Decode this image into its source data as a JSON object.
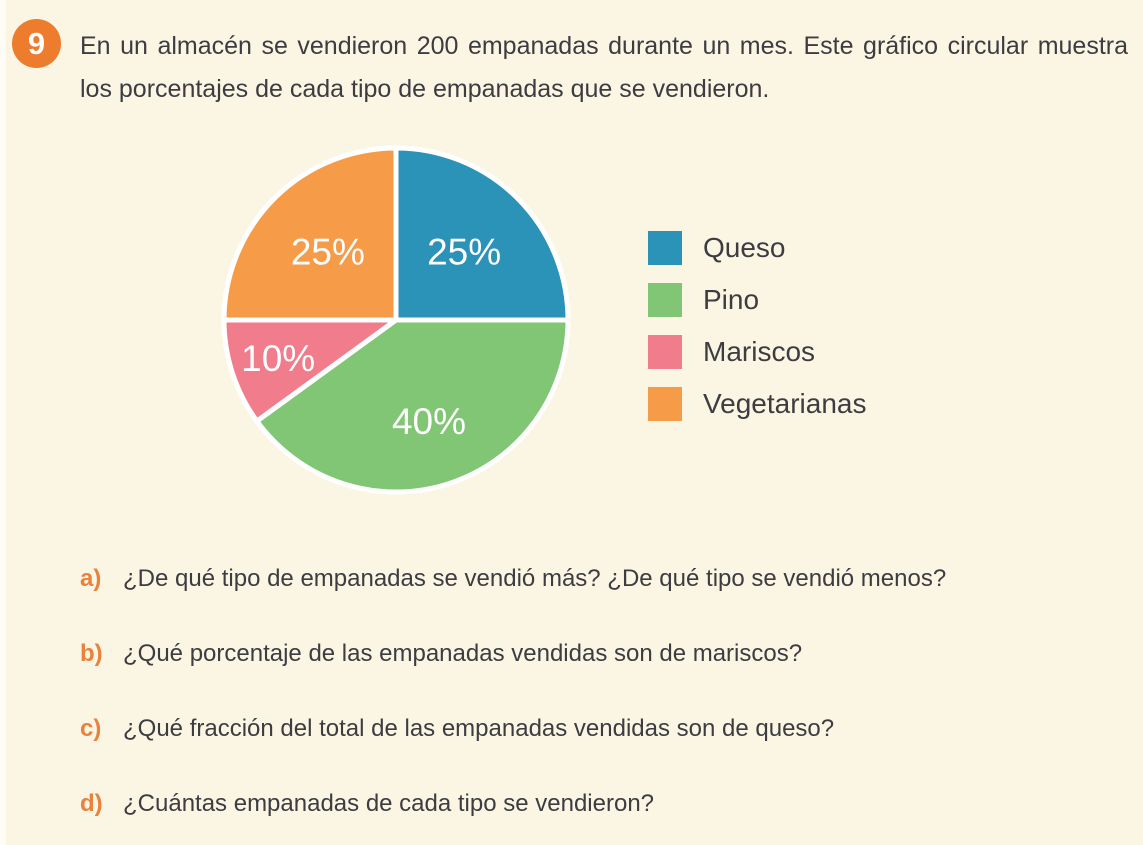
{
  "page": {
    "background_color": "#FBF6E3",
    "text_color": "#3C3C41"
  },
  "exercise": {
    "number": "9",
    "badge_color": "#ED7D2D",
    "statement": "En un almacén se vendieron 200 empanadas durante un mes. Este gráfico circular muestra los porcentajes de cada tipo de empanadas que se vendieron."
  },
  "chart_data": {
    "type": "pie",
    "title": "",
    "total": 200,
    "unit": "empanadas",
    "start_angle_deg": 0,
    "direction": "clockwise",
    "legend_position": "right",
    "slice_label_color": "#FFFFFF",
    "divider_color": "#FFFFFF",
    "slices": [
      {
        "label": "Queso",
        "value": 25,
        "display": "25%",
        "color": "#2B92B8"
      },
      {
        "label": "Pino",
        "value": 40,
        "display": "40%",
        "color": "#80C674"
      },
      {
        "label": "Mariscos",
        "value": 10,
        "display": "10%",
        "color": "#F07C8C"
      },
      {
        "label": "Vegetarianas",
        "value": 25,
        "display": "25%",
        "color": "#F69B48"
      }
    ]
  },
  "questions": {
    "items": [
      {
        "letter": "a)",
        "text": "¿De qué tipo de empanadas se vendió más? ¿De qué tipo se vendió menos?"
      },
      {
        "letter": "b)",
        "text": "¿Qué porcentaje de las empanadas vendidas son de mariscos?"
      },
      {
        "letter": "c)",
        "text": "¿Qué fracción del total de las empanadas vendidas son de queso?"
      },
      {
        "letter": "d)",
        "text": "¿Cuántas empanadas de cada tipo se vendieron?"
      }
    ]
  }
}
